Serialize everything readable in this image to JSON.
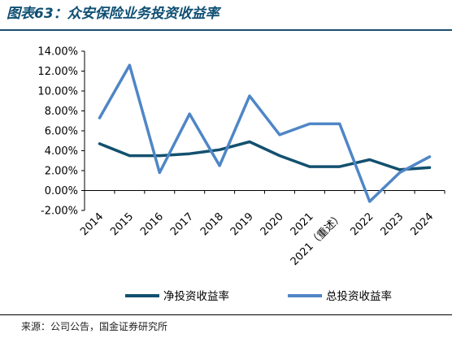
{
  "title": "图表63：众安保险业务投资收益率",
  "source": "来源：公司公告，国金证券研究所",
  "colors": {
    "title": "#0f4f73",
    "net_series": "#13506f",
    "total_series": "#4f86c6",
    "axis": "#000000"
  },
  "chart_data": {
    "type": "line",
    "title": "众安保险业务投资收益率",
    "xlabel": "",
    "ylabel": "",
    "ylim": [
      -0.02,
      0.14
    ],
    "yticks": [
      "14.00%",
      "12.00%",
      "10.00%",
      "8.00%",
      "6.00%",
      "4.00%",
      "2.00%",
      "0.00%",
      "-2.00%"
    ],
    "y_tick_values": [
      0.14,
      0.12,
      0.1,
      0.08,
      0.06,
      0.04,
      0.02,
      0.0,
      -0.02
    ],
    "categories": [
      "2014",
      "2015",
      "2016",
      "2017",
      "2018",
      "2019",
      "2020",
      "2021",
      "2021（重述）",
      "2022",
      "2023",
      "2024"
    ],
    "grid": false,
    "legend_position": "bottom",
    "series": [
      {
        "name": "净投资收益率",
        "color": "#13506f",
        "values": [
          0.047,
          0.035,
          0.035,
          0.037,
          0.041,
          0.049,
          0.035,
          0.024,
          0.024,
          0.031,
          0.021,
          0.023
        ]
      },
      {
        "name": "总投资收益率",
        "color": "#4f86c6",
        "values": [
          0.073,
          0.126,
          0.018,
          0.077,
          0.025,
          0.095,
          0.056,
          0.067,
          0.067,
          -0.011,
          0.018,
          0.034
        ]
      }
    ]
  }
}
